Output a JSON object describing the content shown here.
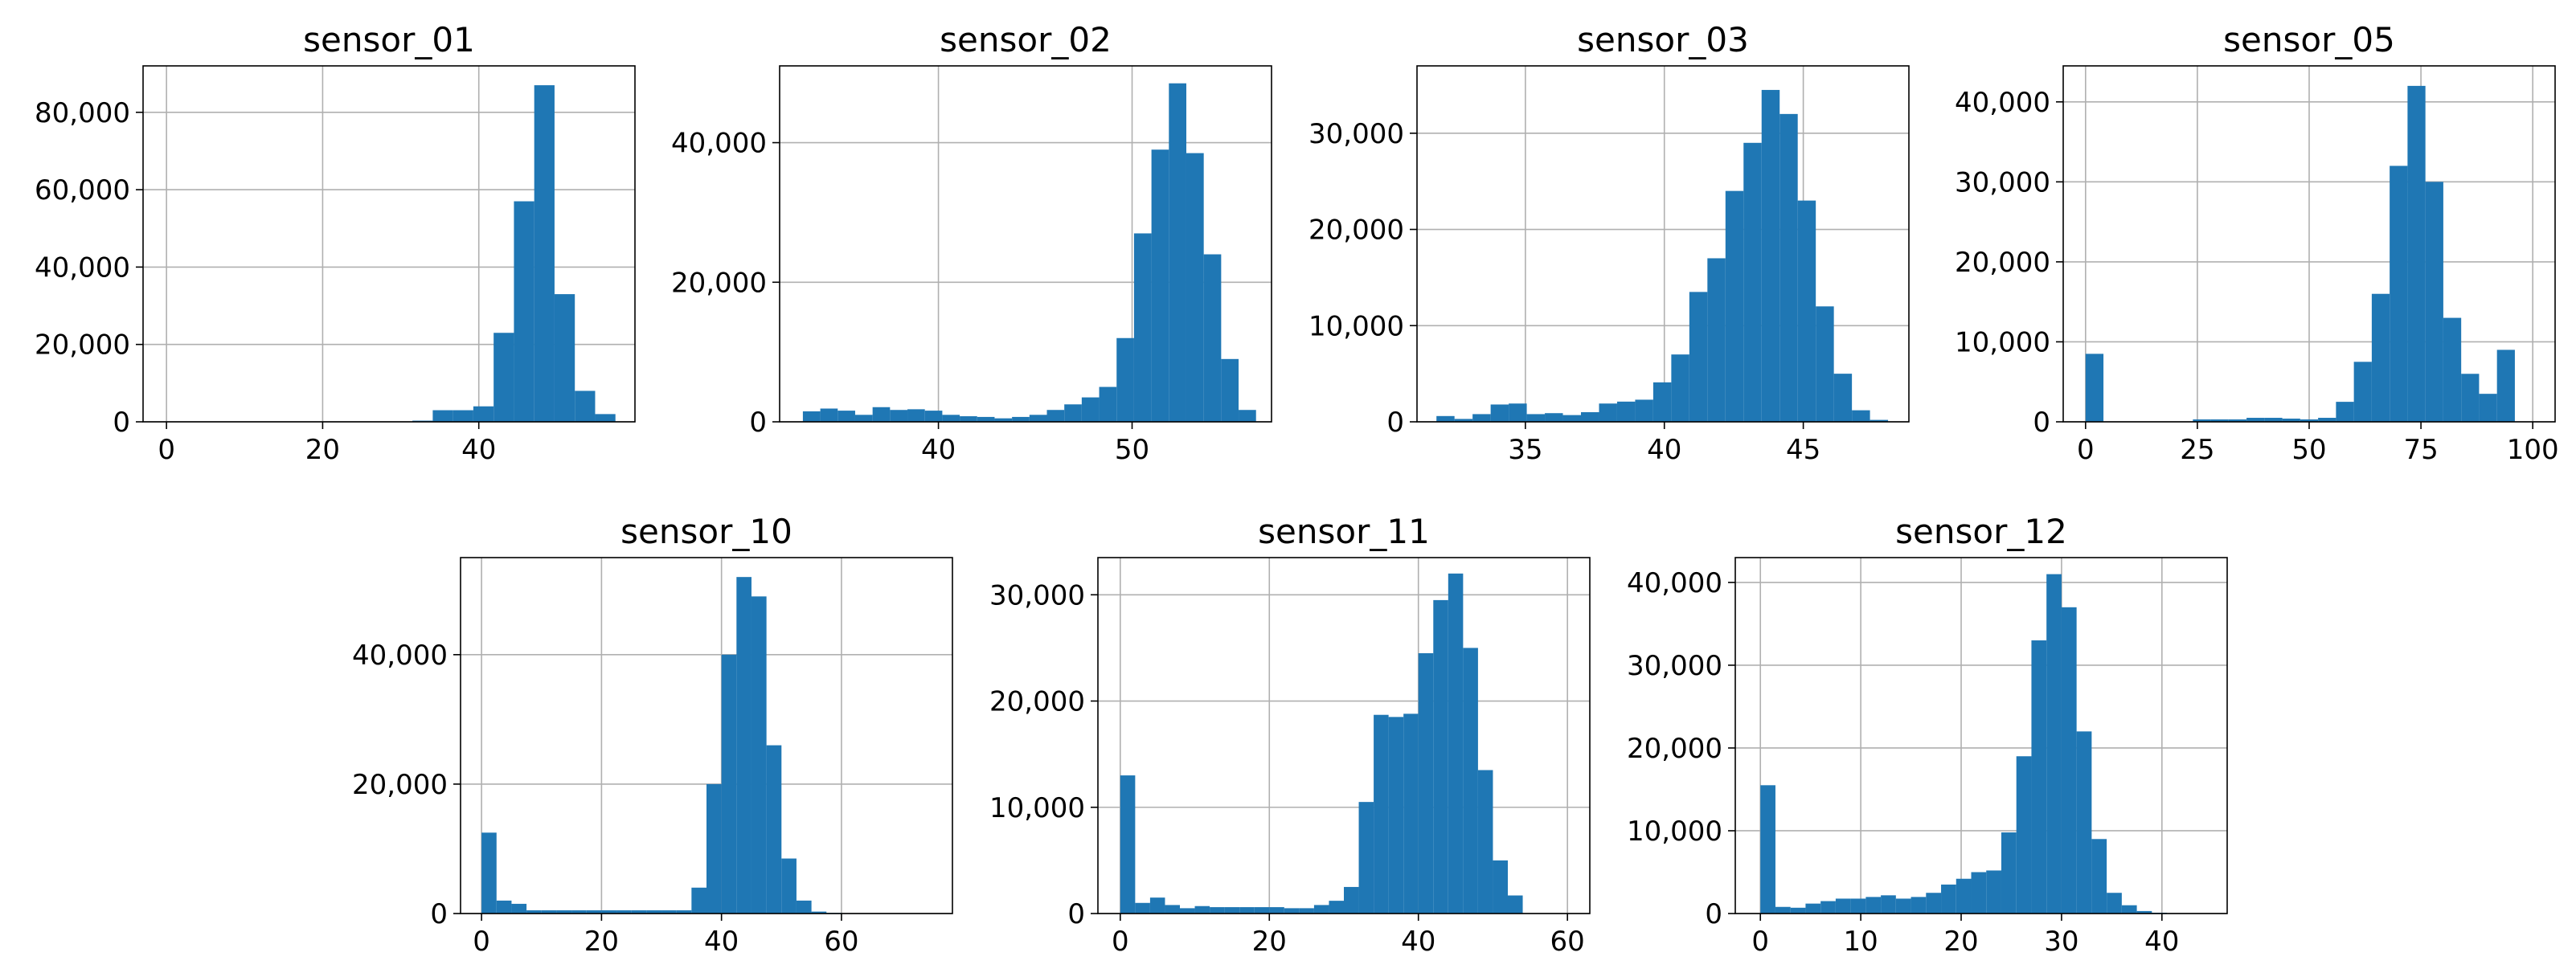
{
  "chart_data": [
    {
      "type": "bar",
      "title": "sensor_01",
      "xlabel": "",
      "ylabel": "",
      "bin_edges": [
        31.5,
        34.1,
        36.7,
        39.3,
        41.9,
        44.5,
        47.1,
        49.7,
        52.3,
        54.9,
        57.5
      ],
      "values": [
        300,
        3000,
        3000,
        4000,
        23000,
        57000,
        87000,
        33000,
        8000,
        2000
      ],
      "xlim": [
        -3,
        60
      ],
      "ylim": [
        0,
        92000
      ],
      "xticks": [
        0,
        20,
        40
      ],
      "xtick_labels": [
        "0",
        "20",
        "40"
      ],
      "yticks": [
        0,
        20000,
        40000,
        60000,
        80000
      ],
      "ytick_labels": [
        "0",
        "20,000",
        "40,000",
        "60,000",
        "80,000"
      ],
      "grid": true
    },
    {
      "type": "bar",
      "title": "sensor_02",
      "xlabel": "",
      "ylabel": "",
      "bin_edges": [
        33,
        33.9,
        34.8,
        35.7,
        36.6,
        37.5,
        38.4,
        39.3,
        40.2,
        41.1,
        42,
        42.9,
        43.8,
        44.7,
        45.6,
        46.5,
        47.4,
        48.3,
        49.2,
        50.1,
        51,
        51.9,
        52.8,
        53.7,
        54.6,
        55.5,
        56.4
      ],
      "values": [
        1500,
        1900,
        1600,
        1000,
        2100,
        1700,
        1800,
        1600,
        1000,
        800,
        700,
        500,
        700,
        1000,
        1700,
        2500,
        3500,
        5000,
        12000,
        27000,
        39000,
        48500,
        38500,
        24000,
        9000,
        1700
      ],
      "xlim": [
        31.8,
        57.2
      ],
      "ylim": [
        0,
        51000
      ],
      "xticks": [
        40,
        50
      ],
      "xtick_labels": [
        "40",
        "50"
      ],
      "yticks": [
        0,
        20000,
        40000
      ],
      "ytick_labels": [
        "0",
        "20,000",
        "40,000"
      ],
      "grid": true
    },
    {
      "type": "bar",
      "title": "sensor_03",
      "xlabel": "",
      "ylabel": "",
      "bin_edges": [
        31.8,
        32.45,
        33.1,
        33.75,
        34.4,
        35.05,
        35.7,
        36.35,
        37,
        37.65,
        38.3,
        38.95,
        39.6,
        40.25,
        40.9,
        41.55,
        42.2,
        42.85,
        43.5,
        44.15,
        44.8,
        45.45,
        46.1,
        46.75,
        47.4,
        48.05
      ],
      "values": [
        600,
        300,
        800,
        1800,
        1900,
        800,
        900,
        700,
        1000,
        1900,
        2100,
        2300,
        4100,
        7000,
        13500,
        17000,
        24000,
        29000,
        34500,
        32000,
        23000,
        12000,
        5000,
        1200,
        200
      ],
      "xlim": [
        31.1,
        48.8
      ],
      "ylim": [
        0,
        37000
      ],
      "xticks": [
        35,
        40,
        45
      ],
      "xtick_labels": [
        "35",
        "40",
        "45"
      ],
      "yticks": [
        0,
        10000,
        20000,
        30000
      ],
      "ytick_labels": [
        "0",
        "10,000",
        "20,000",
        "30,000"
      ],
      "grid": true
    },
    {
      "type": "bar",
      "title": "sensor_05",
      "xlabel": "",
      "ylabel": "",
      "bin_edges": [
        0,
        4,
        8,
        12,
        16,
        20,
        24,
        28,
        32,
        36,
        40,
        44,
        48,
        52,
        56,
        60,
        64,
        68,
        72,
        76,
        80,
        84,
        88,
        92,
        96,
        100
      ],
      "values": [
        8500,
        0,
        0,
        0,
        0,
        0,
        300,
        300,
        300,
        500,
        500,
        400,
        300,
        500,
        2500,
        7500,
        16000,
        32000,
        42000,
        30000,
        13000,
        6000,
        3500,
        9000,
        0
      ],
      "xlim": [
        -5,
        105
      ],
      "ylim": [
        0,
        44500
      ],
      "xticks": [
        0,
        25,
        50,
        75,
        100
      ],
      "xtick_labels": [
        "0",
        "25",
        "50",
        "75",
        "100"
      ],
      "yticks": [
        0,
        10000,
        20000,
        30000,
        40000
      ],
      "ytick_labels": [
        "0",
        "10,000",
        "20,000",
        "30,000",
        "40,000"
      ],
      "grid": true
    },
    {
      "type": "bar",
      "title": "sensor_10",
      "xlabel": "",
      "ylabel": "",
      "bin_edges": [
        0,
        2.5,
        5,
        7.5,
        10,
        12.5,
        15,
        17.5,
        20,
        22.5,
        25,
        27.5,
        30,
        32.5,
        35,
        37.5,
        40,
        42.5,
        45,
        47.5,
        50,
        52.5,
        55,
        57.5,
        60,
        62.5,
        65,
        67.5,
        70,
        72.5,
        75
      ],
      "values": [
        12500,
        2000,
        1500,
        500,
        500,
        500,
        500,
        500,
        500,
        500,
        500,
        500,
        500,
        500,
        4000,
        20000,
        40000,
        52000,
        49000,
        26000,
        8500,
        2000,
        300,
        100,
        50,
        0,
        0,
        0,
        0,
        0
      ],
      "xlim": [
        -3.5,
        78.5
      ],
      "ylim": [
        0,
        55000
      ],
      "xticks": [
        0,
        20,
        40,
        60
      ],
      "xtick_labels": [
        "0",
        "20",
        "40",
        "60"
      ],
      "yticks": [
        0,
        20000,
        40000
      ],
      "ytick_labels": [
        "0",
        "20,000",
        "40,000"
      ],
      "grid": true
    },
    {
      "type": "bar",
      "title": "sensor_11",
      "xlabel": "",
      "ylabel": "",
      "bin_edges": [
        0,
        2,
        4,
        6,
        8,
        10,
        12,
        14,
        16,
        18,
        20,
        22,
        24,
        26,
        28,
        30,
        32,
        34,
        36,
        38,
        40,
        42,
        44,
        46,
        48,
        50,
        52,
        54,
        56,
        58,
        60
      ],
      "values": [
        13000,
        1000,
        1500,
        800,
        500,
        700,
        600,
        600,
        600,
        600,
        600,
        500,
        500,
        800,
        1200,
        2500,
        10500,
        18700,
        18500,
        18800,
        24500,
        29500,
        32000,
        25000,
        13500,
        5000,
        1700,
        0,
        0,
        0
      ],
      "xlim": [
        -3,
        63
      ],
      "ylim": [
        0,
        33500
      ],
      "xticks": [
        0,
        20,
        40,
        60
      ],
      "xtick_labels": [
        "0",
        "20",
        "40",
        "60"
      ],
      "yticks": [
        0,
        10000,
        20000,
        30000
      ],
      "ytick_labels": [
        "0",
        "10,000",
        "20,000",
        "30,000"
      ],
      "grid": true
    },
    {
      "type": "bar",
      "title": "sensor_12",
      "xlabel": "",
      "ylabel": "",
      "bin_edges": [
        0,
        1.5,
        3,
        4.5,
        6,
        7.5,
        9,
        10.5,
        12,
        13.5,
        15,
        16.5,
        18,
        19.5,
        21,
        22.5,
        24,
        25.5,
        27,
        28.5,
        30,
        31.5,
        33,
        34.5,
        36,
        37.5,
        39,
        40.5,
        42,
        43.5
      ],
      "values": [
        15500,
        800,
        700,
        1200,
        1500,
        1800,
        1800,
        2000,
        2200,
        1800,
        2000,
        2500,
        3500,
        4200,
        5000,
        5200,
        9800,
        19000,
        33000,
        41000,
        37000,
        22000,
        9000,
        2500,
        1000,
        300,
        100,
        50,
        0
      ],
      "xlim": [
        -2.5,
        46.5
      ],
      "ylim": [
        0,
        43000
      ],
      "xticks": [
        0,
        10,
        20,
        30,
        40
      ],
      "xtick_labels": [
        "0",
        "10",
        "20",
        "30",
        "40"
      ],
      "yticks": [
        0,
        10000,
        20000,
        30000,
        40000
      ],
      "ytick_labels": [
        "0",
        "10,000",
        "20,000",
        "30,000",
        "40,000"
      ],
      "grid": true
    }
  ]
}
